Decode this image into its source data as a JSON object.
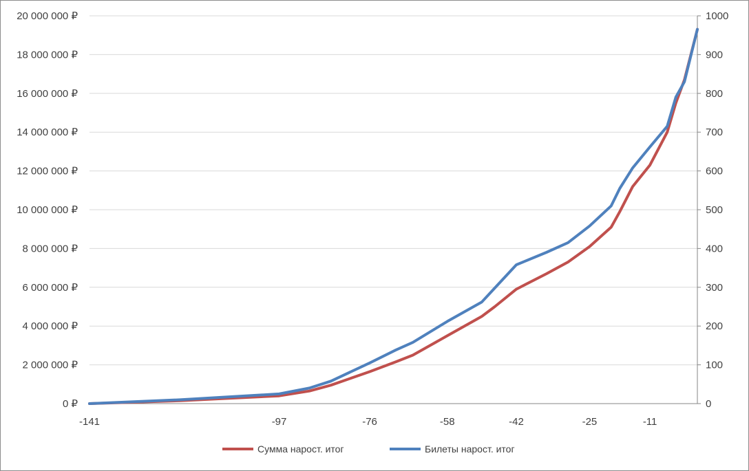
{
  "chart_data": {
    "type": "line",
    "title": "",
    "xlabel": "",
    "ylabel": "",
    "grid": true,
    "legend_position": "bottom",
    "x_tick_labels": [
      "-141",
      "-97",
      "-76",
      "-58",
      "-42",
      "-25",
      "-11"
    ],
    "x_range": [
      -141,
      0
    ],
    "left_axis": {
      "ylim": [
        0,
        20000000
      ],
      "tick_labels": [
        "0 ₽",
        "2 000 000 ₽",
        "4 000 000 ₽",
        "6 000 000 ₽",
        "8 000 000 ₽",
        "10 000 000 ₽",
        "12 000 000 ₽",
        "14 000 000 ₽",
        "16 000 000 ₽",
        "18 000 000 ₽",
        "20 000 000 ₽"
      ]
    },
    "right_axis": {
      "ylim": [
        0,
        1000
      ],
      "tick_labels": [
        "0",
        "100",
        "200",
        "300",
        "400",
        "500",
        "600",
        "700",
        "800",
        "900",
        "1000"
      ]
    },
    "x": [
      -141,
      -120,
      -97,
      -90,
      -85,
      -76,
      -70,
      -66,
      -58,
      -50,
      -47,
      -42,
      -35,
      -30,
      -25,
      -20,
      -18,
      -15,
      -11,
      -7,
      -5,
      -3,
      0
    ],
    "series": [
      {
        "name": "Сумма нарост. итог",
        "color": "#c0504d",
        "axis": "left",
        "values": [
          0,
          150000,
          400000,
          650000,
          950000,
          1650000,
          2150000,
          2500000,
          3500000,
          4500000,
          5000000,
          5900000,
          6700000,
          7300000,
          8100000,
          9100000,
          9900000,
          11200000,
          12300000,
          14000000,
          15500000,
          16700000,
          19300000
        ]
      },
      {
        "name": "Билеты нарост. итог",
        "color": "#4f81bd",
        "axis": "right",
        "values": [
          0,
          10,
          25,
          40,
          58,
          105,
          138,
          158,
          212,
          262,
          298,
          358,
          390,
          415,
          458,
          510,
          555,
          608,
          662,
          715,
          790,
          830,
          965
        ]
      }
    ]
  }
}
